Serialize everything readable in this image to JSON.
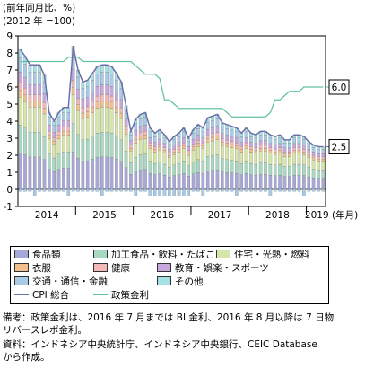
{
  "unit_line1": "(前年同月比、%)",
  "unit_line2": "(2012 年 =100)",
  "x_unit": "(年月)",
  "end_labels": {
    "policy": "6.0",
    "cpi": "2.5"
  },
  "legend": [
    {
      "label": "食品類",
      "color": "#a8a8d8",
      "kind": "bar"
    },
    {
      "label": "加工食品・飲料・たばこ",
      "color": "#a8d8c0",
      "kind": "bar"
    },
    {
      "label": "住宅・光熱・燃料",
      "color": "#d6e6a8",
      "kind": "bar"
    },
    {
      "label": "衣服",
      "color": "#f2c08a",
      "kind": "bar"
    },
    {
      "label": "健康",
      "color": "#f4b8b8",
      "kind": "bar"
    },
    {
      "label": "教育・娯楽・スポーツ",
      "color": "#c8a8dc",
      "kind": "bar"
    },
    {
      "label": "交通・通信・金融",
      "color": "#a8cce8",
      "kind": "bar"
    },
    {
      "label": "その他",
      "color": "#a8e0e8",
      "kind": "bar"
    },
    {
      "label": "CPI 総合",
      "color": "#6a70a8",
      "kind": "line"
    },
    {
      "label": "政策金利",
      "color": "#66c2a4",
      "kind": "line"
    }
  ],
  "notes": [
    "備考：政策金利は、2016 年 7 月までは BI 金利、2016 年 8 月以降は 7 日物",
    "リバースレポ金利。",
    "資料：インドネシア中央統計庁、インドネシア中央銀行、CEIC Database",
    "から作成。"
  ],
  "chart_data": {
    "type": "bar",
    "ylim": [
      -1,
      9
    ],
    "yticks": [
      -1,
      0,
      1,
      2,
      3,
      4,
      5,
      6,
      7,
      8,
      9
    ],
    "xticks": [
      "2014",
      "2015",
      "2016",
      "2017",
      "2018",
      "2019"
    ],
    "months": 64,
    "series": [
      {
        "name": "CPI 総合",
        "type": "line",
        "values": [
          8.2,
          7.8,
          7.3,
          7.3,
          7.3,
          6.7,
          4.5,
          4.0,
          4.5,
          4.8,
          4.8,
          8.4,
          7.0,
          6.3,
          6.4,
          6.8,
          7.2,
          7.3,
          7.3,
          7.2,
          6.8,
          6.3,
          4.9,
          3.4,
          4.1,
          4.4,
          4.5,
          3.6,
          3.3,
          3.5,
          3.2,
          2.8,
          3.1,
          3.3,
          3.6,
          3.0,
          3.5,
          3.8,
          3.6,
          4.2,
          4.3,
          4.4,
          3.9,
          3.8,
          3.7,
          3.6,
          3.3,
          3.6,
          3.3,
          3.2,
          3.4,
          3.4,
          3.2,
          3.1,
          3.2,
          2.9,
          2.9,
          3.2,
          3.2,
          3.1,
          2.8,
          2.6,
          2.5,
          2.5
        ]
      },
      {
        "name": "政策金利",
        "type": "line",
        "values": [
          7.5,
          7.5,
          7.5,
          7.5,
          7.5,
          7.5,
          7.5,
          7.5,
          7.5,
          7.5,
          7.75,
          7.75,
          7.75,
          7.5,
          7.5,
          7.5,
          7.5,
          7.5,
          7.5,
          7.5,
          7.5,
          7.5,
          7.5,
          7.5,
          7.25,
          7.0,
          6.75,
          6.75,
          6.75,
          6.5,
          5.25,
          5.25,
          5.0,
          4.75,
          4.75,
          4.75,
          4.75,
          4.75,
          4.75,
          4.75,
          4.75,
          4.75,
          4.75,
          4.5,
          4.25,
          4.25,
          4.25,
          4.25,
          4.25,
          4.25,
          4.25,
          4.25,
          4.5,
          5.25,
          5.25,
          5.5,
          5.75,
          5.75,
          5.75,
          6.0,
          6.0,
          6.0,
          6.0,
          6.0
        ]
      }
    ],
    "stack_shares": [
      {
        "name": "食品類",
        "share": 0.26
      },
      {
        "name": "加工食品・飲料・たばこ",
        "share": 0.2
      },
      {
        "name": "住宅・光熱・燃料",
        "share": 0.2
      },
      {
        "name": "衣服",
        "share": 0.05
      },
      {
        "name": "健康",
        "share": 0.05
      },
      {
        "name": "教育・娯楽・スポーツ",
        "share": 0.08
      },
      {
        "name": "交通・通信・金融",
        "share": 0.1
      },
      {
        "name": "その他",
        "share": 0.06
      }
    ]
  }
}
